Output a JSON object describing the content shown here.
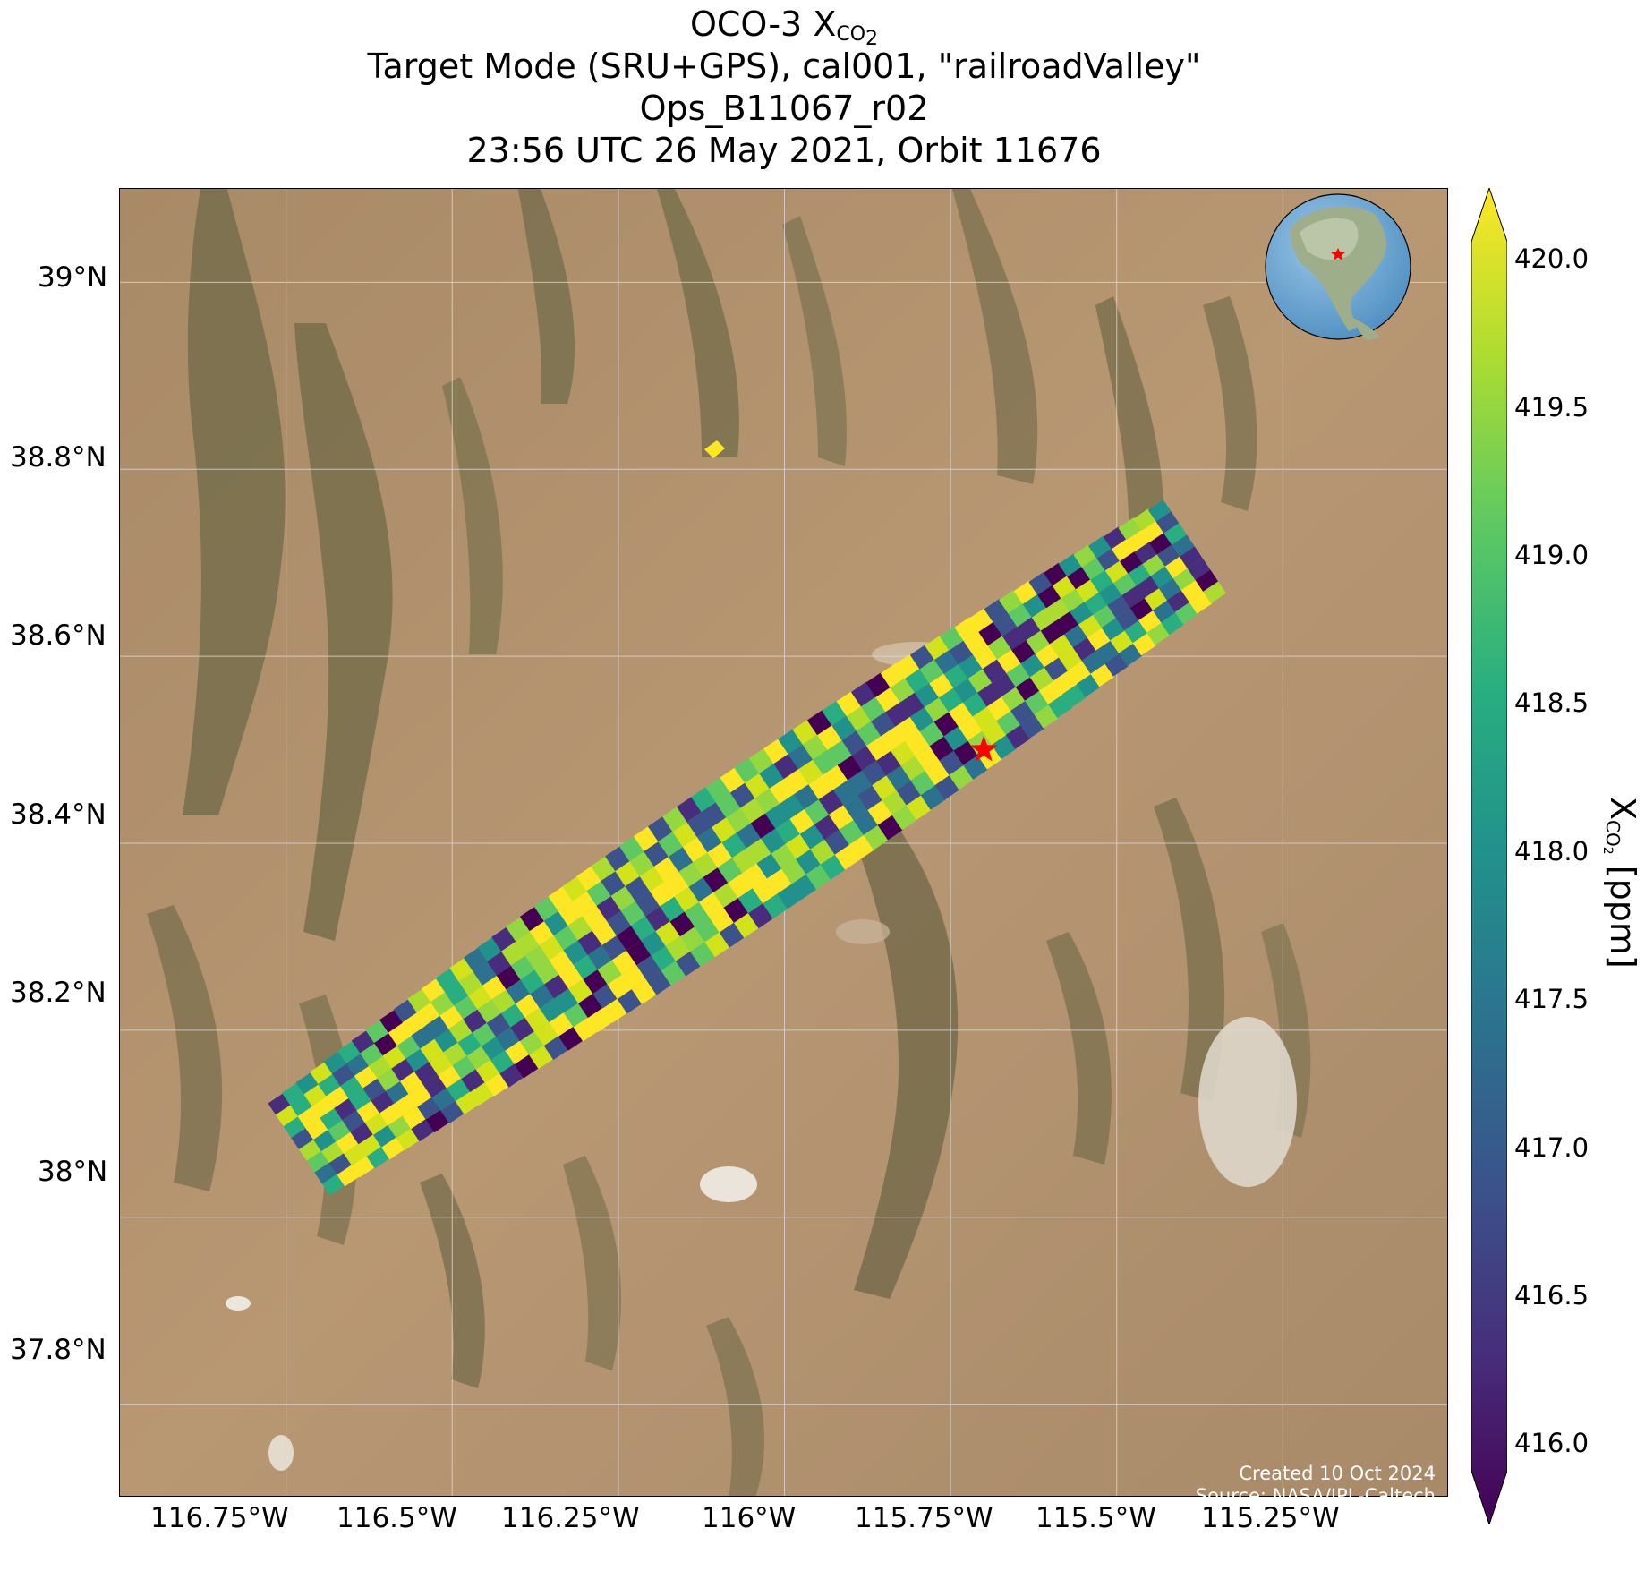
{
  "title": {
    "line1_prefix": "OCO-3 X",
    "line1_sub": "CO",
    "line1_subsub": "2",
    "line2": "Target Mode (SRU+GPS), cal001, \"railroadValley\"",
    "line3": "Ops_B11067_r02",
    "line4": "23:56 UTC 26 May 2021, Orbit 11676"
  },
  "map": {
    "extent": {
      "lon": [
        -117.0,
        -115.0
      ],
      "lat": [
        37.7,
        39.1
      ]
    },
    "background": "satellite-imagery-desert",
    "target_marker": {
      "lon": -115.7,
      "lat": 38.5,
      "color": "#ff0000",
      "symbol": "star"
    },
    "lat_ticks": [
      "39°N",
      "38.8°N",
      "38.6°N",
      "38.4°N",
      "38.2°N",
      "38°N",
      "37.8°N"
    ],
    "lat_tick_values": [
      39.0,
      38.8,
      38.6,
      38.4,
      38.2,
      38.0,
      37.8
    ],
    "lon_ticks": [
      "116.75°W",
      "116.5°W",
      "116.25°W",
      "116°W",
      "115.75°W",
      "115.5°W",
      "115.25°W"
    ],
    "lon_tick_values": [
      -116.75,
      -116.5,
      -116.25,
      -116.0,
      -115.75,
      -115.5,
      -115.25
    ],
    "grid": true,
    "swath_description": "Target-mode sounding swath running SW to NE across Railroad Valley",
    "inset_globe": {
      "view": "North America",
      "marker_color": "#ff0000"
    }
  },
  "credit": {
    "created": "Created 10 Oct 2024",
    "source": "Source: NASA/JPL-Caltech"
  },
  "colorbar": {
    "label_prefix": "X",
    "label_sub": "CO",
    "label_subsub": "2",
    "label_suffix": " [ppm]",
    "min": 416.0,
    "max": 420.0,
    "extend": "both",
    "colormap": "viridis",
    "ticks": [
      "420.0",
      "419.5",
      "419.0",
      "418.5",
      "418.0",
      "417.5",
      "417.0",
      "416.5",
      "416.0"
    ],
    "tick_values": [
      420.0,
      419.5,
      419.0,
      418.5,
      418.0,
      417.5,
      417.0,
      416.5,
      416.0
    ]
  }
}
